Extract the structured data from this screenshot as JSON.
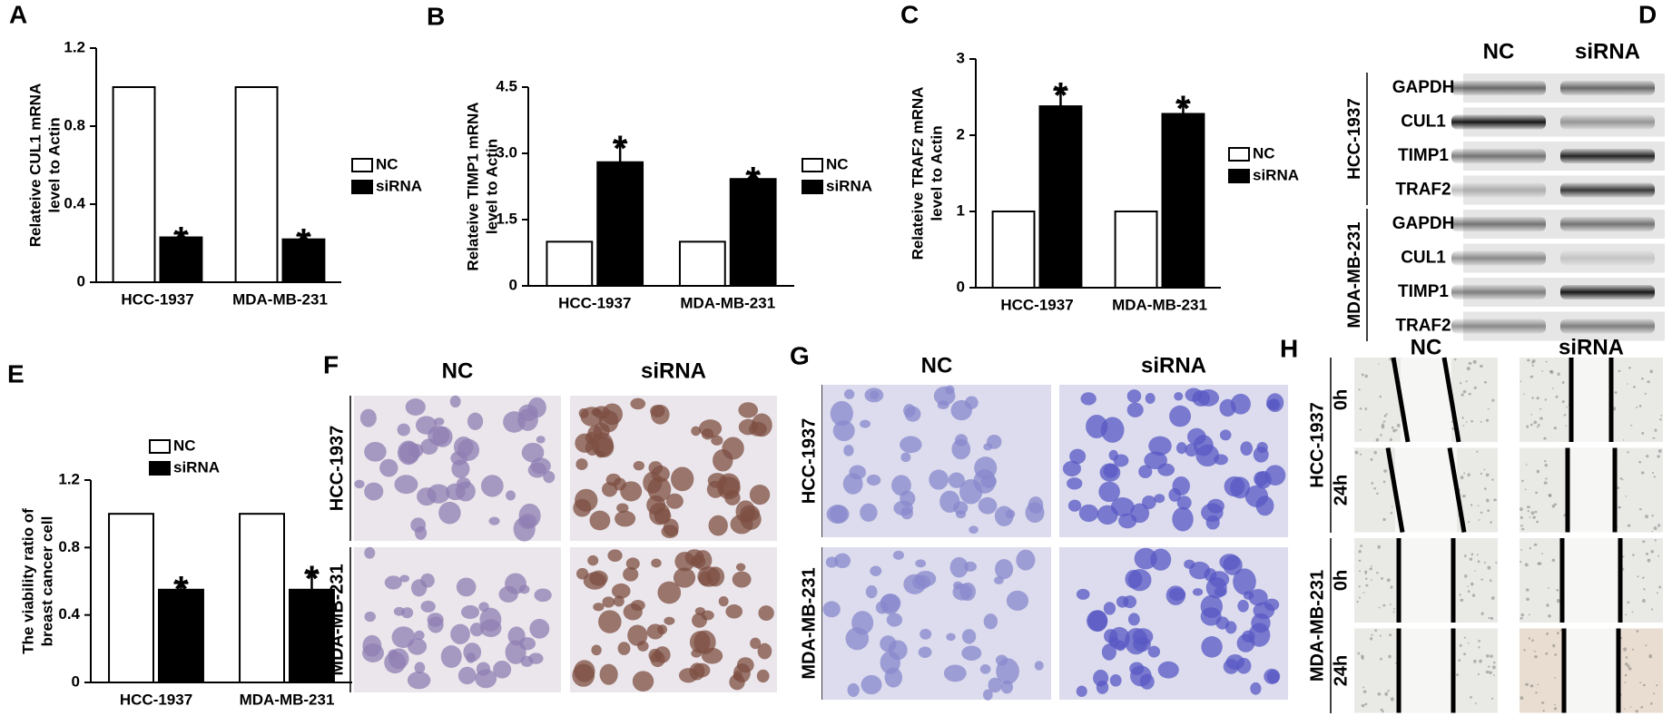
{
  "chart_data": [
    {
      "type": "bar",
      "panel": "A",
      "y_label": [
        "Relateive CUL1 mRNA",
        "level to Actin"
      ],
      "categories": [
        "HCC-1937",
        "MDA-MB-231"
      ],
      "series": [
        {
          "name": "NC",
          "color": "#ffffff",
          "values": [
            1,
            1
          ]
        },
        {
          "name": "siRNA",
          "color": "#000000",
          "values": [
            0.23,
            0.22
          ],
          "errors": [
            0.02,
            0.02
          ],
          "annotations": [
            "*",
            "*"
          ]
        }
      ],
      "ylim": [
        0,
        1.2
      ],
      "yticks": [
        0,
        0.4,
        0.8,
        1.2
      ]
    },
    {
      "type": "bar",
      "panel": "B",
      "y_label": [
        "Relateive TIMP1 mRNA",
        "level to Actin"
      ],
      "categories": [
        "HCC-1937",
        "MDA-MB-231"
      ],
      "series": [
        {
          "name": "NC",
          "color": "#ffffff",
          "values": [
            1,
            1
          ]
        },
        {
          "name": "siRNA",
          "color": "#000000",
          "values": [
            2.8,
            2.42
          ],
          "errors": [
            0.45,
            0.12
          ],
          "annotations": [
            "*",
            "*"
          ]
        }
      ],
      "ylim": [
        0,
        4.5
      ],
      "yticks": [
        0,
        1.5,
        {
          "value": 3,
          "label": "3.0"
        },
        4.5
      ]
    },
    {
      "type": "bar",
      "panel": "C",
      "y_label": [
        "Relateive TRAF2 mRNA",
        "level to Actin"
      ],
      "categories": [
        "HCC-1937",
        "MDA-MB-231"
      ],
      "series": [
        {
          "name": "NC",
          "color": "#ffffff",
          "values": [
            1,
            1
          ]
        },
        {
          "name": "siRNA",
          "color": "#000000",
          "values": [
            2.38,
            2.28
          ],
          "errors": [
            0.22,
            0.15
          ],
          "annotations": [
            "*",
            "*"
          ]
        }
      ],
      "ylim": [
        0,
        3
      ],
      "yticks": [
        0,
        1,
        2,
        3
      ]
    },
    {
      "type": "bar",
      "panel": "E",
      "y_label": [
        "The viability ratio of",
        "breast cancer cell"
      ],
      "categories": [
        "HCC-1937",
        "MDA-MB-231"
      ],
      "series": [
        {
          "name": "NC",
          "color": "#ffffff",
          "values": [
            1,
            1
          ]
        },
        {
          "name": "siRNA",
          "color": "#000000",
          "values": [
            0.55,
            0.55
          ],
          "errors": [
            0.04,
            0.1
          ],
          "annotations": [
            "*",
            "*"
          ]
        }
      ],
      "ylim": [
        0,
        1.2
      ],
      "yticks": [
        0,
        0.4,
        0.8,
        1.2
      ]
    }
  ],
  "western_blot": {
    "panel": "D",
    "columns": [
      "NC",
      "siRNA"
    ],
    "groups": [
      {
        "name": "HCC-1937",
        "rows": [
          "GAPDH",
          "CUL1",
          "TIMP1",
          "TRAF2"
        ]
      },
      {
        "name": "MDA-MB-231",
        "rows": [
          "GAPDH",
          "CUL1",
          "TIMP1",
          "TRAF2"
        ]
      }
    ]
  },
  "staining": {
    "panel": "F",
    "columns": [
      "NC",
      "siRNA"
    ],
    "rows": [
      "HCC-1937",
      "MDA-MB-231"
    ]
  },
  "invasion": {
    "panel": "G",
    "columns": [
      "NC",
      "siRNA"
    ],
    "rows": [
      "HCC-1937",
      "MDA-MB-231"
    ]
  },
  "wound_healing": {
    "panel": "H",
    "columns": [
      "NC",
      "siRNA"
    ],
    "groups": [
      {
        "name": "HCC-1937",
        "times": [
          "0h",
          "24h"
        ]
      },
      {
        "name": "MDA-MB-231",
        "times": [
          "0h",
          "24h"
        ]
      }
    ]
  }
}
